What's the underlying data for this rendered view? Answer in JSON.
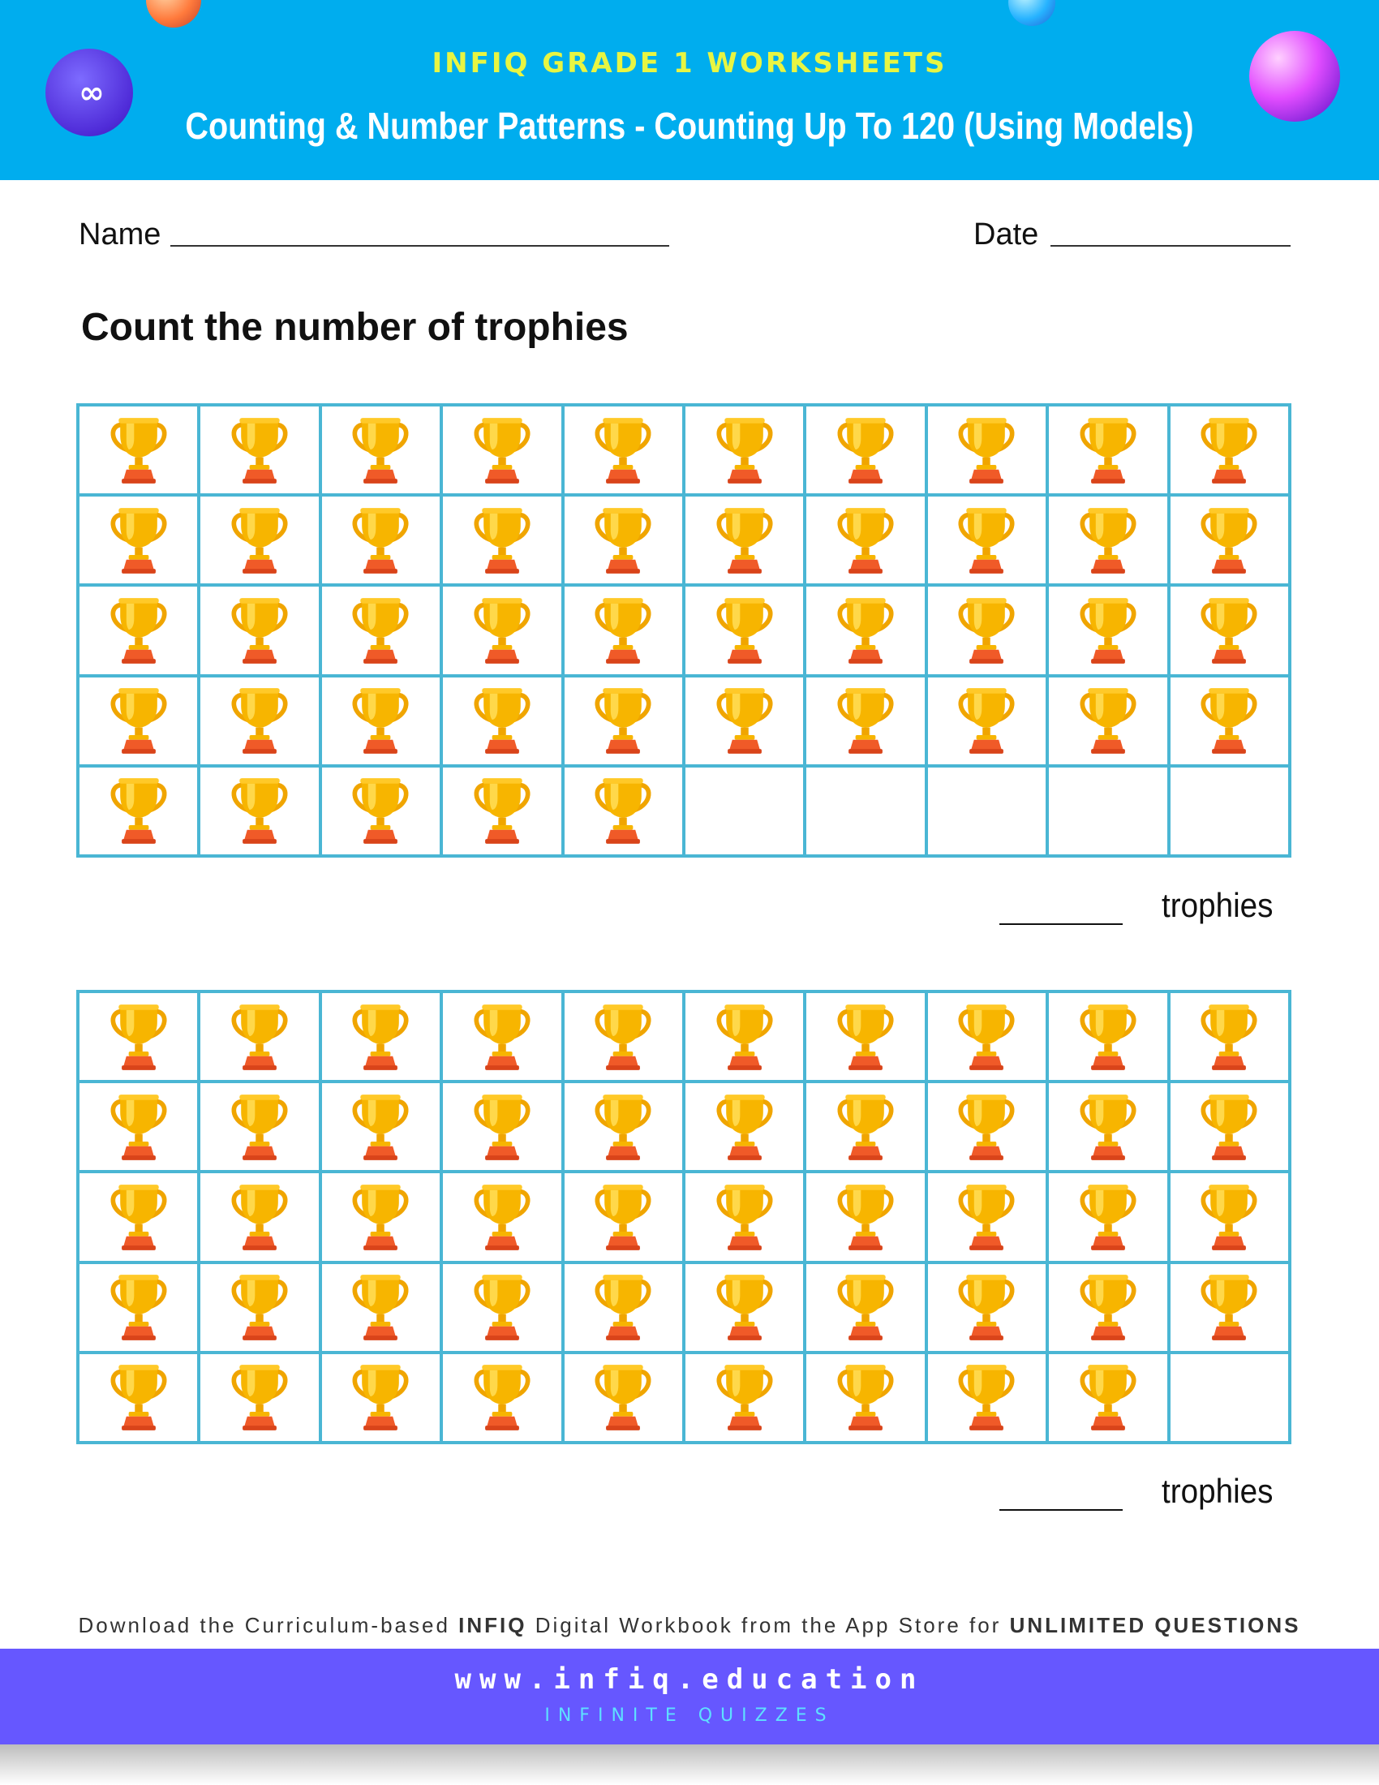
{
  "header": {
    "title": "INFIQ GRADE 1 WORKSHEETS",
    "subtitle": "Counting & Number Patterns - Counting Up To 120 (Using Models)",
    "logo_text": "∞"
  },
  "form": {
    "name_label": "Name",
    "date_label": "Date"
  },
  "instruction": "Count the number of trophies",
  "problems": [
    {
      "filled_cells": 45,
      "total_cells": 50,
      "answer_unit": "trophies"
    },
    {
      "filled_cells": 49,
      "total_cells": 50,
      "answer_unit": "trophies"
    }
  ],
  "promo": {
    "prefix": "Download the Curriculum-based ",
    "brand": "INFIQ",
    "middle": " Digital Workbook from the App Store for ",
    "cta": "UNLIMITED QUESTIONS"
  },
  "footer": {
    "url": "www.infiq.education",
    "tagline": "INFINITE QUIZZES"
  },
  "icons": {
    "trophy": "trophy-icon"
  },
  "colors": {
    "header_bg": "#00adee",
    "header_title": "#e8f542",
    "grid_border": "#4ab6d4",
    "footer_bg": "#6657ff",
    "footer_tagline": "#5ee0ff",
    "trophy_gold": "#f7b500",
    "trophy_base": "#f05a28"
  }
}
